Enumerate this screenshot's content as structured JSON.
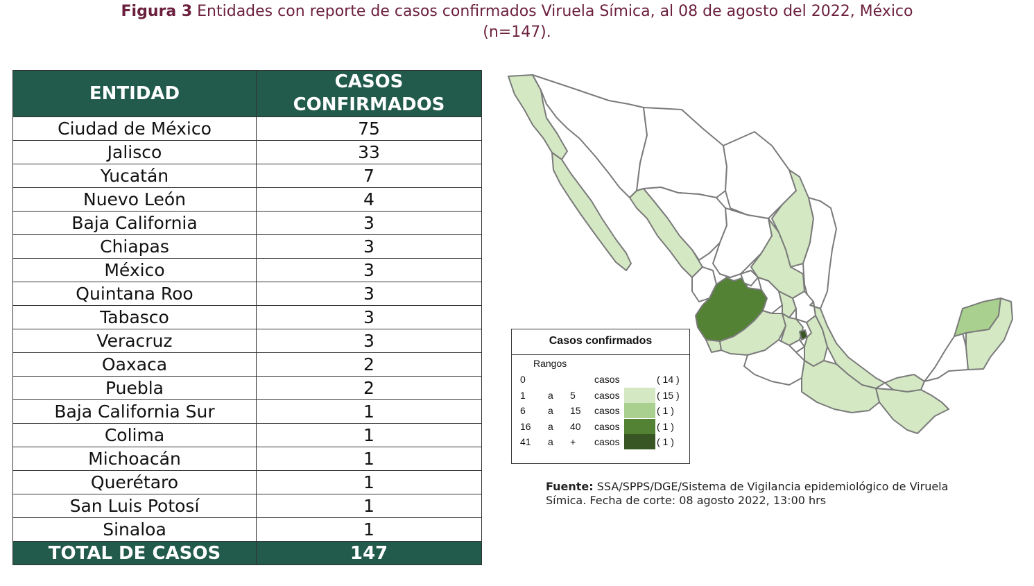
{
  "title": {
    "lead": "Figura 3",
    "text": "Entidades con reporte de casos confirmados Viruela Símica, al 08 de agosto del 2022, México",
    "line2": "(n=147)."
  },
  "table": {
    "header_entity": "ENTIDAD",
    "header_cases_1": "CASOS",
    "header_cases_2": "CONFIRMADOS",
    "rows": [
      {
        "entidad": "Ciudad de México",
        "casos": "75"
      },
      {
        "entidad": "Jalisco",
        "casos": "33"
      },
      {
        "entidad": "Yucatán",
        "casos": "7"
      },
      {
        "entidad": "Nuevo León",
        "casos": "4"
      },
      {
        "entidad": "Baja California",
        "casos": "3"
      },
      {
        "entidad": "Chiapas",
        "casos": "3"
      },
      {
        "entidad": "México",
        "casos": "3"
      },
      {
        "entidad": "Quintana Roo",
        "casos": "3"
      },
      {
        "entidad": "Tabasco",
        "casos": "3"
      },
      {
        "entidad": "Veracruz",
        "casos": "3"
      },
      {
        "entidad": "Oaxaca",
        "casos": "2"
      },
      {
        "entidad": "Puebla",
        "casos": "2"
      },
      {
        "entidad": "Baja California Sur",
        "casos": "1"
      },
      {
        "entidad": "Colima",
        "casos": "1"
      },
      {
        "entidad": "Michoacán",
        "casos": "1"
      },
      {
        "entidad": "Querétaro",
        "casos": "1"
      },
      {
        "entidad": "San Luis Potosí",
        "casos": "1"
      },
      {
        "entidad": "Sinaloa",
        "casos": "1"
      }
    ],
    "total_label": "TOTAL DE CASOS",
    "total_value": "147"
  },
  "legend": {
    "title": "Casos confirmados",
    "subtitle": "Rangos",
    "rows": [
      {
        "from": "0",
        "sep": "",
        "to": "",
        "unit": "casos",
        "count": "( 14 )",
        "color": "#ffffff"
      },
      {
        "from": "1",
        "sep": "a",
        "to": "5",
        "unit": "casos",
        "count": "( 15 )",
        "color": "#d4e8c4"
      },
      {
        "from": "6",
        "sep": "a",
        "to": "15",
        "unit": "casos",
        "count": "( 1 )",
        "color": "#a9d08e"
      },
      {
        "from": "16",
        "sep": "a",
        "to": "40",
        "unit": "casos",
        "count": "( 1 )",
        "color": "#548235"
      },
      {
        "from": "41",
        "sep": "a",
        "to": "+",
        "unit": "casos",
        "count": "( 1 )",
        "color": "#375623"
      }
    ]
  },
  "map_colors": {
    "none": "#ffffff",
    "low": "#d4e8c4",
    "mid": "#a9d08e",
    "high": "#548235",
    "top": "#375623",
    "border": "#7a7a7a"
  },
  "source": {
    "label": "Fuente:",
    "text": "SSA/SPPS/DGE/Sistema de Vigilancia epidemiológico de Viruela",
    "line2": "Símica. Fecha de corte: 08 agosto 2022, 13:00 hrs"
  }
}
